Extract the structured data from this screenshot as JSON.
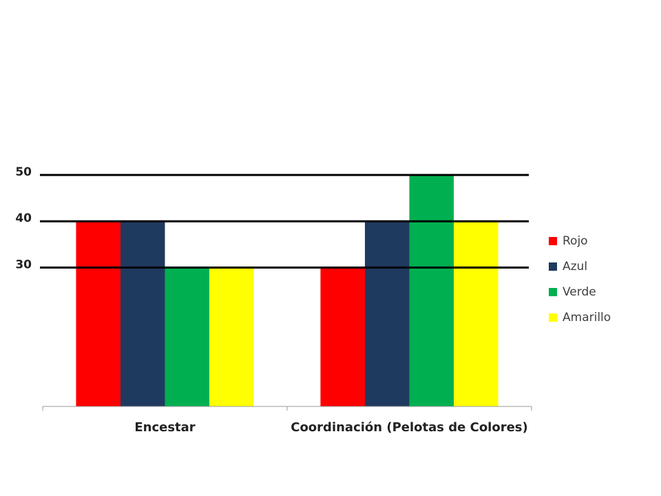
{
  "chart_data": {
    "type": "bar",
    "categories": [
      "Encestar",
      "Coordinación (Pelotas de Colores)"
    ],
    "series": [
      {
        "name": "Rojo",
        "color": "#ff0000",
        "values": [
          40,
          30
        ]
      },
      {
        "name": "Azul",
        "color": "#1f3a5f",
        "values": [
          40,
          40
        ]
      },
      {
        "name": "Verde",
        "color": "#00b050",
        "values": [
          30,
          50
        ]
      },
      {
        "name": "Amarillo",
        "color": "#ffff00",
        "values": [
          30,
          40
        ]
      }
    ],
    "ylim": [
      0,
      50
    ],
    "yticks": [
      30,
      40,
      50
    ],
    "grid": true,
    "legend": "right"
  }
}
